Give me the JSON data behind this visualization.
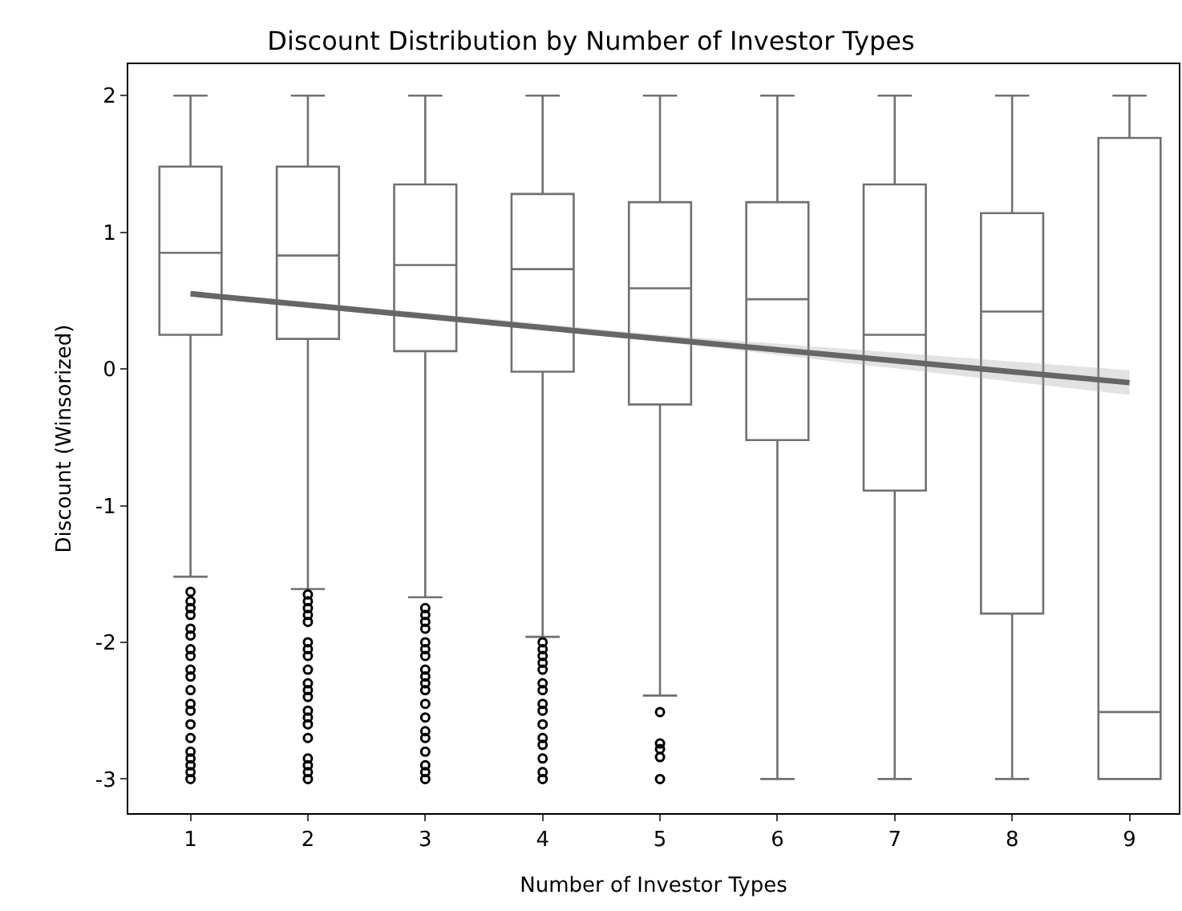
{
  "chart_data": {
    "type": "box",
    "title": "Discount Distribution by Number of Investor Types",
    "xlabel": "Number of Investor Types",
    "ylabel": "Discount (Winsorized)",
    "x": [
      1,
      2,
      3,
      4,
      5,
      6,
      7,
      8,
      9
    ],
    "color": "#707070",
    "boxes": [
      {
        "low": -1.52,
        "q1": 0.25,
        "median": 0.85,
        "q3": 1.48,
        "high": 2,
        "outliers": [
          -1.63,
          -1.7,
          -1.75,
          -1.8,
          -1.9,
          -1.95,
          -2.05,
          -2.1,
          -2.2,
          -2.25,
          -2.35,
          -2.45,
          -2.5,
          -2.6,
          -2.7,
          -2.8,
          -2.85,
          -2.9,
          -2.95,
          -3
        ]
      },
      {
        "low": -1.61,
        "q1": 0.22,
        "median": 0.83,
        "q3": 1.48,
        "high": 2,
        "outliers": [
          -1.65,
          -1.7,
          -1.75,
          -1.8,
          -1.85,
          -2.0,
          -2.05,
          -2.1,
          -2.2,
          -2.3,
          -2.35,
          -2.4,
          -2.5,
          -2.55,
          -2.6,
          -2.7,
          -2.85,
          -2.9,
          -2.95,
          -3
        ]
      },
      {
        "low": -1.67,
        "q1": 0.13,
        "median": 0.76,
        "q3": 1.35,
        "high": 2,
        "outliers": [
          -1.75,
          -1.8,
          -1.85,
          -1.9,
          -2.0,
          -2.05,
          -2.1,
          -2.2,
          -2.25,
          -2.3,
          -2.35,
          -2.45,
          -2.55,
          -2.65,
          -2.7,
          -2.8,
          -2.9,
          -2.95,
          -3
        ]
      },
      {
        "low": -1.96,
        "q1": -0.02,
        "median": 0.73,
        "q3": 1.28,
        "high": 2,
        "outliers": [
          -2.0,
          -2.05,
          -2.1,
          -2.15,
          -2.2,
          -2.3,
          -2.35,
          -2.45,
          -2.5,
          -2.6,
          -2.7,
          -2.75,
          -2.85,
          -2.95,
          -3
        ]
      },
      {
        "low": -2.39,
        "q1": -0.26,
        "median": 0.59,
        "q3": 1.22,
        "high": 2,
        "outliers": [
          -2.51,
          -2.74,
          -2.78,
          -2.84,
          -3
        ]
      },
      {
        "low": -3,
        "q1": -0.52,
        "median": 0.51,
        "q3": 1.22,
        "high": 2
      },
      {
        "low": -3,
        "q1": -0.89,
        "median": 0.25,
        "q3": 1.35,
        "high": 2
      },
      {
        "low": -3,
        "q1": -1.79,
        "median": 0.42,
        "q3": 1.14,
        "high": 2
      },
      {
        "low": -3,
        "q1": -3,
        "median": -2.51,
        "q3": 1.69,
        "high": 2
      }
    ],
    "series": [
      {
        "type": "line",
        "color": "#666666",
        "x": [
          1,
          5,
          9
        ],
        "values": [
          0.55,
          0.22,
          -0.1
        ],
        "lower": [
          0.53,
          0.2,
          -0.19
        ],
        "upper": [
          0.57,
          0.25,
          -0.01
        ]
      }
    ],
    "xlim": [
      0.47,
      9.42
    ],
    "xticks": [
      1,
      2,
      3,
      4,
      5,
      6,
      7,
      8,
      9
    ],
    "ylim": [
      -3.25,
      2.23
    ],
    "yticks": [
      -3,
      -2,
      -1,
      0,
      1,
      2
    ],
    "grid": false
  }
}
